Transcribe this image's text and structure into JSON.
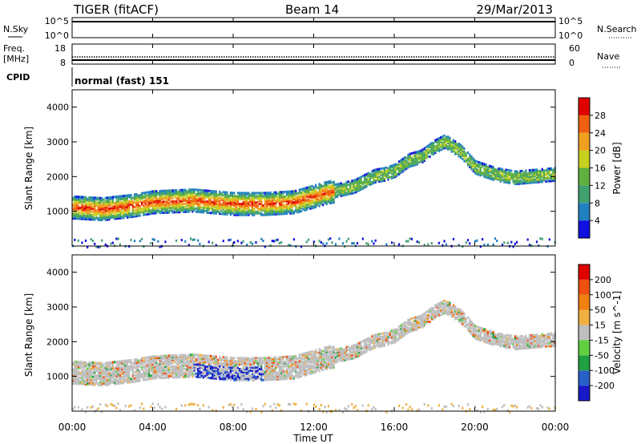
{
  "header": {
    "radar": "TIGER (fitACF)",
    "beam": "Beam 14",
    "date": "29/Mar/2013"
  },
  "nsky_panel": {
    "left_label": "N.Sky",
    "right_label": "N.Search",
    "left_ticks": [
      "10^5",
      "10^0"
    ],
    "right_ticks": [
      "10^5",
      "10^0"
    ]
  },
  "freq_panel": {
    "left_label_1": "Freq.",
    "left_label_2": "[MHz]",
    "right_label": "Nave",
    "left_ticks": [
      "18",
      "8"
    ],
    "right_ticks": [
      "60",
      "0"
    ]
  },
  "cpid": {
    "label": "CPID",
    "mode": "normal (fast) 151"
  },
  "chart_data": [
    {
      "type": "heatmap",
      "title": "Power",
      "ylabel": "Slant Range [km]",
      "ylim": [
        0,
        4500
      ],
      "y_ticks": [
        "1000",
        "2000",
        "3000",
        "4000"
      ],
      "x_ticks": [
        "00:00",
        "04:00",
        "08:00",
        "12:00",
        "16:00",
        "20:00",
        "00:00"
      ],
      "colorbar": {
        "label": "Power [dB]",
        "ticks": [
          "4",
          "8",
          "12",
          "16",
          "20",
          "24",
          "28"
        ],
        "colors": [
          "#1010e0",
          "#2080c0",
          "#40a070",
          "#60b040",
          "#c8d020",
          "#f0a020",
          "#f06010",
          "#e00000"
        ]
      },
      "echo_band_km": [
        [
          0,
          1150
        ],
        [
          1.5,
          1100
        ],
        [
          3,
          1200
        ],
        [
          4,
          1300
        ],
        [
          6,
          1350
        ],
        [
          8,
          1250
        ],
        [
          9.5,
          1250
        ],
        [
          11,
          1300
        ],
        [
          12.5,
          1550
        ],
        [
          14,
          1750
        ],
        [
          15,
          2050
        ],
        [
          15.5,
          2100
        ],
        [
          16,
          2200
        ],
        [
          16.7,
          2500
        ],
        [
          17.3,
          2600
        ],
        [
          18,
          2900
        ],
        [
          18.5,
          3050
        ],
        [
          19.3,
          2750
        ],
        [
          20,
          2300
        ],
        [
          21,
          2100
        ],
        [
          22,
          2000
        ],
        [
          23,
          2050
        ],
        [
          24,
          2100
        ]
      ]
    },
    {
      "type": "heatmap",
      "title": "Velocity",
      "ylabel": "Slant Range [km]",
      "xlabel": "Time UT",
      "ylim": [
        0,
        4500
      ],
      "y_ticks": [
        "1000",
        "2000",
        "3000",
        "4000"
      ],
      "x_ticks": [
        "00:00",
        "04:00",
        "08:00",
        "12:00",
        "16:00",
        "20:00",
        "00:00"
      ],
      "colorbar": {
        "label": "Velocity [m s^-1]",
        "ticks": [
          "200",
          "100",
          "50",
          "15",
          "-15",
          "-50",
          "-100",
          "-200"
        ],
        "colors": [
          "#1818c8",
          "#2860c8",
          "#20a040",
          "#60d040",
          "#bebebe",
          "#f0b040",
          "#f08010",
          "#f05010",
          "#e00000"
        ]
      }
    }
  ]
}
